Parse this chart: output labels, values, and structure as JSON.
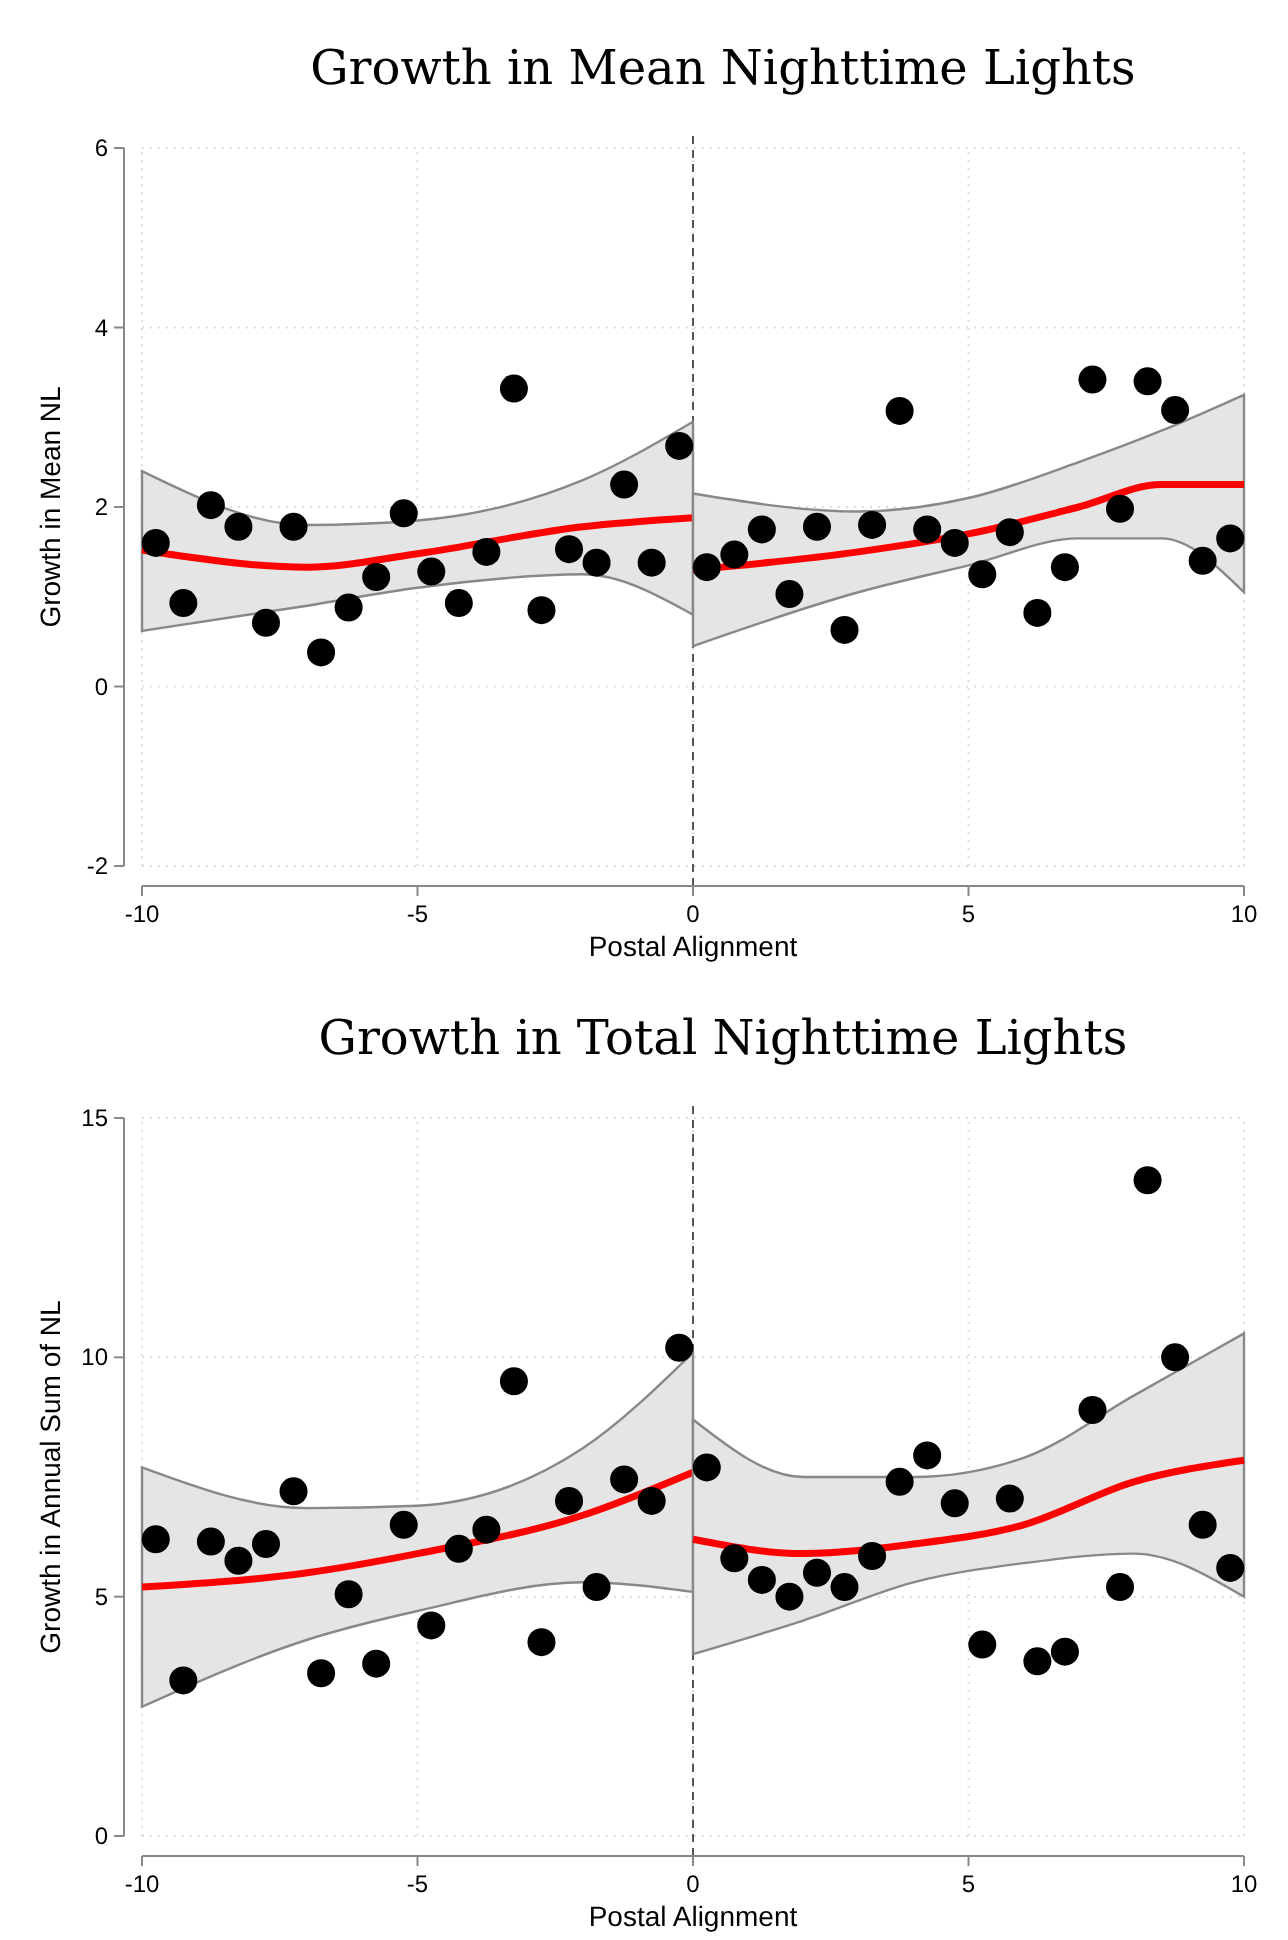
{
  "chart_data": [
    {
      "type": "scatter",
      "title": "Growth in Mean Nighttime Lights",
      "xlabel": "Postal Alignment",
      "ylabel": "Growth in Mean NL",
      "xlim": [
        -10,
        10
      ],
      "ylim": [
        -2,
        6
      ],
      "xticks": [
        -10,
        -5,
        0,
        5,
        10
      ],
      "yticks": [
        -2,
        0,
        2,
        4,
        6
      ],
      "grid": true,
      "marker": "circle",
      "ref_lines": [
        {
          "axis": "x",
          "value": 0,
          "color": "#555555",
          "line_style": "dashed"
        }
      ],
      "series": [
        {
          "type": "line",
          "marker": "none",
          "color": "#ff0000",
          "line_style": "solid",
          "x": [
            -10,
            -7,
            -5,
            -2,
            0
          ],
          "values": [
            1.52,
            1.33,
            1.48,
            1.78,
            1.88
          ],
          "lower": [
            0.62,
            0.9,
            1.1,
            1.25,
            0.8
          ],
          "upper": [
            2.4,
            1.8,
            1.85,
            2.3,
            2.95
          ]
        },
        {
          "type": "line",
          "marker": "none",
          "color": "#ff0000",
          "line_style": "solid",
          "x": [
            0,
            3,
            5,
            7,
            8.5,
            10
          ],
          "values": [
            1.3,
            1.5,
            1.7,
            2.0,
            2.25,
            2.25
          ],
          "lower": [
            0.45,
            1.05,
            1.35,
            1.65,
            1.65,
            1.05
          ],
          "upper": [
            2.15,
            1.95,
            2.1,
            2.5,
            2.85,
            3.25
          ]
        },
        {
          "color": "#000000",
          "x": [
            -9.75,
            -9.25,
            -8.75,
            -8.25,
            -7.75,
            -7.25,
            -6.75,
            -6.25,
            -5.75,
            -5.25,
            -4.75,
            -4.25,
            -3.75,
            -3.25,
            -2.75,
            -2.25,
            -1.75,
            -1.25,
            -0.75,
            -0.25,
            0.25,
            0.75,
            1.25,
            1.75,
            2.25,
            2.75,
            3.25,
            3.75,
            4.25,
            4.75,
            5.25,
            5.75,
            6.25,
            6.75,
            7.25,
            7.75,
            8.25,
            8.75,
            9.25,
            9.75
          ],
          "values": [
            1.6,
            0.93,
            2.02,
            1.78,
            0.71,
            1.78,
            0.38,
            0.88,
            1.22,
            1.93,
            1.28,
            0.93,
            1.5,
            3.32,
            0.85,
            1.53,
            1.38,
            2.25,
            1.38,
            2.68,
            1.33,
            1.47,
            1.75,
            1.03,
            1.78,
            0.63,
            1.8,
            3.07,
            1.75,
            1.6,
            1.25,
            1.72,
            0.82,
            1.33,
            3.42,
            1.98,
            3.4,
            3.08,
            1.4,
            1.65
          ]
        }
      ]
    },
    {
      "type": "scatter",
      "title": "Growth in Total Nighttime Lights",
      "xlabel": "Postal Alignment",
      "ylabel": "Growth in Annual Sum of NL",
      "xlim": [
        -10,
        10
      ],
      "ylim": [
        0,
        15
      ],
      "xticks": [
        -10,
        -5,
        0,
        5,
        10
      ],
      "yticks": [
        0,
        5,
        10,
        15
      ],
      "grid": true,
      "marker": "circle",
      "ref_lines": [
        {
          "axis": "x",
          "value": 0,
          "color": "#555555",
          "line_style": "dashed"
        }
      ],
      "series": [
        {
          "type": "line",
          "marker": "none",
          "color": "#ff0000",
          "line_style": "solid",
          "x": [
            -10,
            -7,
            -5,
            -2,
            0
          ],
          "values": [
            5.2,
            5.5,
            5.9,
            6.7,
            7.6
          ],
          "lower": [
            2.7,
            4.1,
            4.7,
            5.3,
            5.1
          ],
          "upper": [
            7.7,
            6.85,
            6.9,
            8.1,
            10.1
          ]
        },
        {
          "type": "line",
          "marker": "none",
          "color": "#ff0000",
          "line_style": "solid",
          "x": [
            0,
            2,
            4,
            6,
            8,
            10
          ],
          "values": [
            6.2,
            5.9,
            6.1,
            6.5,
            7.4,
            7.85
          ],
          "lower": [
            3.8,
            4.5,
            5.3,
            5.7,
            5.9,
            5.0
          ],
          "upper": [
            8.7,
            7.5,
            7.5,
            7.9,
            9.2,
            10.5
          ]
        },
        {
          "color": "#000000",
          "x": [
            -9.75,
            -9.25,
            -8.75,
            -8.25,
            -7.75,
            -7.25,
            -6.75,
            -6.25,
            -5.75,
            -5.25,
            -4.75,
            -4.25,
            -3.75,
            -3.25,
            -2.75,
            -2.25,
            -1.75,
            -1.25,
            -0.75,
            -0.25,
            0.25,
            0.75,
            1.25,
            1.75,
            2.25,
            2.75,
            3.25,
            3.75,
            4.25,
            4.75,
            5.25,
            5.75,
            6.25,
            6.75,
            7.25,
            7.75,
            8.25,
            8.75,
            9.25,
            9.75
          ],
          "values": [
            6.2,
            3.25,
            6.15,
            5.75,
            6.1,
            7.2,
            3.4,
            5.05,
            3.6,
            6.5,
            4.4,
            6.0,
            6.4,
            9.5,
            4.05,
            7.0,
            5.2,
            7.45,
            7.0,
            10.2,
            7.7,
            5.8,
            5.35,
            5.0,
            5.5,
            5.2,
            5.85,
            7.4,
            7.95,
            6.95,
            4.0,
            7.05,
            3.65,
            3.85,
            8.9,
            5.2,
            13.7,
            10.0,
            6.5,
            5.6
          ]
        }
      ]
    }
  ]
}
